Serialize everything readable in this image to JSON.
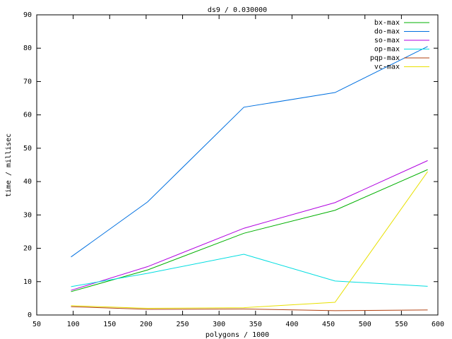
{
  "chart_data": {
    "type": "line",
    "title": "ds9 / 0.030000",
    "x_label": "polygons / 1000",
    "y_label": "time / millisec",
    "x": [
      97,
      202,
      334,
      459,
      586
    ],
    "series": [
      {
        "name": "bx-max",
        "color": "#00b000",
        "values": [
          7.0,
          13.5,
          24.5,
          31.4,
          43.6
        ]
      },
      {
        "name": "do-max",
        "color": "#0070e0",
        "values": [
          17.4,
          33.9,
          62.3,
          66.7,
          80.5
        ]
      },
      {
        "name": "so-max",
        "color": "#b000e0",
        "values": [
          7.4,
          14.5,
          26.0,
          33.7,
          46.3
        ]
      },
      {
        "name": "op-max",
        "color": "#00dde0",
        "values": [
          8.5,
          12.5,
          18.2,
          10.2,
          8.6
        ]
      },
      {
        "name": "pqp-max",
        "color": "#b04010",
        "values": [
          2.5,
          1.7,
          1.8,
          1.3,
          1.5
        ]
      },
      {
        "name": "vc-max",
        "color": "#e8e000",
        "values": [
          2.8,
          2.0,
          2.2,
          3.8,
          43.0
        ]
      }
    ],
    "xlim": [
      50,
      600
    ],
    "xticks": [
      50,
      100,
      150,
      200,
      250,
      300,
      350,
      400,
      450,
      500,
      550,
      600
    ],
    "ylim": [
      0,
      90
    ],
    "yticks": [
      0,
      10,
      20,
      30,
      40,
      50,
      60,
      70,
      80,
      90
    ],
    "grid": false,
    "legend": "top-right"
  }
}
